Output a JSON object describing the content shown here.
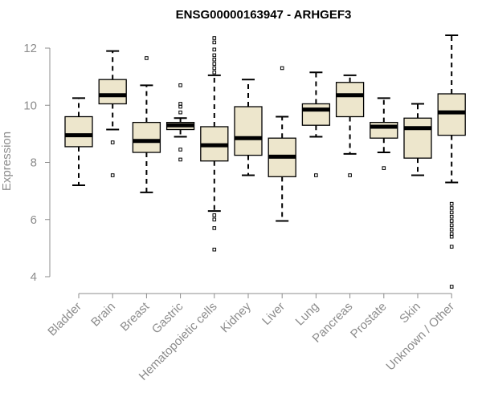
{
  "chart_data": {
    "type": "boxplot",
    "title": "ENSG00000163947 - ARHGEF3",
    "xlabel": "",
    "ylabel": "Expression",
    "ylim": [
      3.5,
      12.6
    ],
    "yticks": [
      4,
      6,
      8,
      10,
      12
    ],
    "grid": false,
    "box_fill": "#ede6cc",
    "box_edge": "#000000",
    "median_color": "#000000",
    "axis_color": "#8c8c8c",
    "categories": [
      "Bladder",
      "Brain",
      "Breast",
      "Gastric",
      "Hematopoietic cells",
      "Kidney",
      "Liver",
      "Lung",
      "Pancreas",
      "Prostate",
      "Skin",
      "Unknown / Other"
    ],
    "boxes": [
      {
        "label": "Bladder",
        "whisker_low": 7.2,
        "q1": 8.55,
        "median": 8.95,
        "q3": 9.6,
        "whisker_high": 10.25,
        "outliers": []
      },
      {
        "label": "Brain",
        "whisker_low": 9.15,
        "q1": 10.05,
        "median": 10.35,
        "q3": 10.9,
        "whisker_high": 11.9,
        "outliers": [
          8.7,
          7.55
        ]
      },
      {
        "label": "Breast",
        "whisker_low": 6.95,
        "q1": 8.35,
        "median": 8.75,
        "q3": 9.4,
        "whisker_high": 10.7,
        "outliers": [
          11.65
        ]
      },
      {
        "label": "Gastric",
        "whisker_low": 8.9,
        "q1": 9.15,
        "median": 9.3,
        "q3": 9.4,
        "whisker_high": 9.55,
        "outliers": [
          10.7,
          10.05,
          9.95,
          9.75,
          8.45,
          8.1
        ]
      },
      {
        "label": "Hematopoietic cells",
        "whisker_low": 6.3,
        "q1": 8.05,
        "median": 8.6,
        "q3": 9.25,
        "whisker_high": 11.05,
        "outliers": [
          12.35,
          12.2,
          11.95,
          11.75,
          11.6,
          11.45,
          11.3,
          11.15,
          6.15,
          6.0,
          5.7,
          4.95
        ]
      },
      {
        "label": "Kidney",
        "whisker_low": 7.55,
        "q1": 8.25,
        "median": 8.85,
        "q3": 9.95,
        "whisker_high": 10.9,
        "outliers": []
      },
      {
        "label": "Liver",
        "whisker_low": 5.95,
        "q1": 7.5,
        "median": 8.2,
        "q3": 8.85,
        "whisker_high": 9.6,
        "outliers": [
          11.3
        ]
      },
      {
        "label": "Lung",
        "whisker_low": 8.9,
        "q1": 9.3,
        "median": 9.85,
        "q3": 10.05,
        "whisker_high": 11.15,
        "outliers": [
          7.55
        ]
      },
      {
        "label": "Pancreas",
        "whisker_low": 8.3,
        "q1": 9.6,
        "median": 10.35,
        "q3": 10.8,
        "whisker_high": 11.05,
        "outliers": [
          7.55
        ]
      },
      {
        "label": "Prostate",
        "whisker_low": 8.35,
        "q1": 8.85,
        "median": 9.25,
        "q3": 9.4,
        "whisker_high": 10.25,
        "outliers": [
          7.8
        ]
      },
      {
        "label": "Skin",
        "whisker_low": 7.55,
        "q1": 8.15,
        "median": 9.2,
        "q3": 9.55,
        "whisker_high": 10.05,
        "outliers": []
      },
      {
        "label": "Unknown / Other",
        "whisker_low": 7.3,
        "q1": 8.95,
        "median": 9.75,
        "q3": 10.4,
        "whisker_high": 12.45,
        "outliers": [
          6.55,
          6.4,
          6.25,
          6.1,
          5.95,
          5.8,
          5.65,
          5.5,
          5.4,
          5.05,
          3.65
        ]
      }
    ]
  }
}
